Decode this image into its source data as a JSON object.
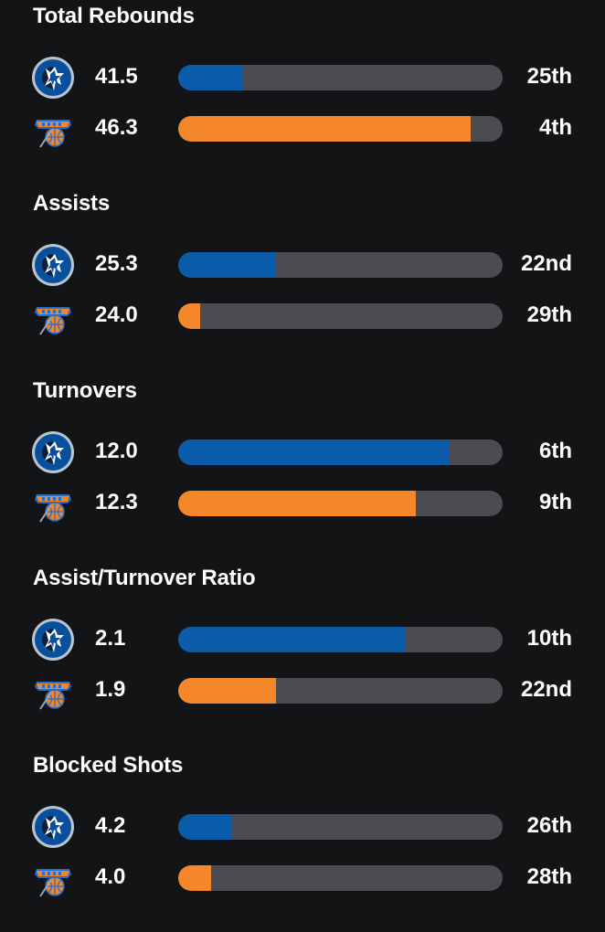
{
  "teams": [
    {
      "key": "dallas",
      "icon": "mavericks-logo-icon",
      "color": "#0a5caa"
    },
    {
      "key": "newyork",
      "icon": "knicks-logo-icon",
      "color": "#f5872b"
    }
  ],
  "chart_data": {
    "type": "bar",
    "orientation": "horizontal",
    "xlim": [
      0,
      30
    ],
    "sections": [
      {
        "title": "Total Rebounds",
        "rows": [
          {
            "team": "dallas",
            "value": "41.5",
            "rank": "25th",
            "rank_num": 25
          },
          {
            "team": "newyork",
            "value": "46.3",
            "rank": "4th",
            "rank_num": 4
          }
        ]
      },
      {
        "title": "Assists",
        "rows": [
          {
            "team": "dallas",
            "value": "25.3",
            "rank": "22nd",
            "rank_num": 22
          },
          {
            "team": "newyork",
            "value": "24.0",
            "rank": "29th",
            "rank_num": 29
          }
        ]
      },
      {
        "title": "Turnovers",
        "rows": [
          {
            "team": "dallas",
            "value": "12.0",
            "rank": "6th",
            "rank_num": 6
          },
          {
            "team": "newyork",
            "value": "12.3",
            "rank": "9th",
            "rank_num": 9
          }
        ]
      },
      {
        "title": "Assist/Turnover Ratio",
        "rows": [
          {
            "team": "dallas",
            "value": "2.1",
            "rank": "10th",
            "rank_num": 10
          },
          {
            "team": "newyork",
            "value": "1.9",
            "rank": "22nd",
            "rank_num": 22
          }
        ]
      },
      {
        "title": "Blocked Shots",
        "rows": [
          {
            "team": "dallas",
            "value": "4.2",
            "rank": "26th",
            "rank_num": 26
          },
          {
            "team": "newyork",
            "value": "4.0",
            "rank": "28th",
            "rank_num": 28
          }
        ]
      }
    ]
  }
}
